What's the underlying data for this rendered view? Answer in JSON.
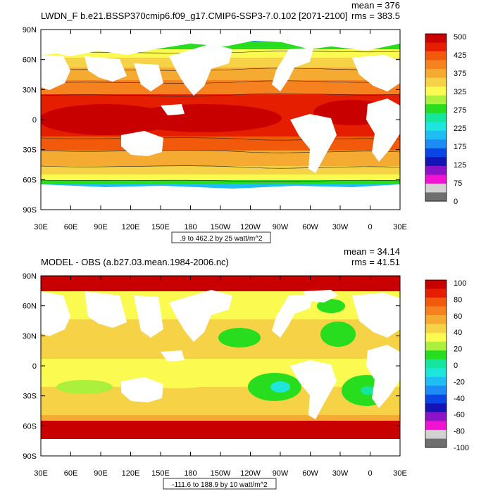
{
  "panels": [
    {
      "title": "LWDN_F b.e21.BSSP370cmip6.f09_g17.CMIP6-SSP3-7.0.102 [2071-2100]",
      "stats": {
        "mean": "mean = 376",
        "rms": "rms = 383.5"
      },
      "range_note": ".9 to 462.2 by 25 watt/m^2",
      "lat_ticks": [
        "90N",
        "60N",
        "30N",
        "0",
        "30S",
        "60S",
        "90S"
      ],
      "lon_ticks": [
        "30E",
        "60E",
        "90E",
        "120E",
        "150E",
        "180",
        "150W",
        "120W",
        "90W",
        "60W",
        "30W",
        "0",
        "30E"
      ],
      "colorbar": {
        "labels": [
          "500",
          "425",
          "375",
          "325",
          "275",
          "225",
          "175",
          "125",
          "75",
          "0"
        ],
        "colors": [
          "#c80000",
          "#e61e00",
          "#f05a0a",
          "#f5821e",
          "#f5aa32",
          "#f5d246",
          "#fafa50",
          "#aaf03c",
          "#28dc1e",
          "#14e6a0",
          "#1ee6dc",
          "#1ebef5",
          "#1e8cf5",
          "#0a46e6",
          "#1414b4",
          "#8c14c8",
          "#f014d2",
          "#d2d2d2",
          "#6e6e6e"
        ]
      }
    },
    {
      "title": "MODEL - OBS (a.b27.03.mean.1984-2006.nc)",
      "stats": {
        "mean": "mean = 34.14",
        "rms": "rms = 41.51"
      },
      "range_note": "-111.6 to 188.9 by 10 watt/m^2",
      "lat_ticks": [
        "90N",
        "60N",
        "30N",
        "0",
        "30S",
        "60S",
        "90S"
      ],
      "lon_ticks": [
        "30E",
        "60E",
        "90E",
        "120E",
        "150E",
        "180",
        "150W",
        "120W",
        "90W",
        "60W",
        "30W",
        "0",
        "30E"
      ],
      "colorbar": {
        "labels": [
          "100",
          "80",
          "60",
          "40",
          "20",
          "0",
          "-20",
          "-40",
          "-60",
          "-80",
          "-100"
        ],
        "colors": [
          "#c80000",
          "#e61e00",
          "#f05a0a",
          "#f5821e",
          "#f5aa32",
          "#f5d246",
          "#fafa50",
          "#aaf03c",
          "#28dc1e",
          "#14e6a0",
          "#1ee6dc",
          "#1ebef5",
          "#1e8cf5",
          "#0a46e6",
          "#1414b4",
          "#8c14c8",
          "#f014d2",
          "#d2d2d2",
          "#6e6e6e"
        ]
      }
    }
  ]
}
